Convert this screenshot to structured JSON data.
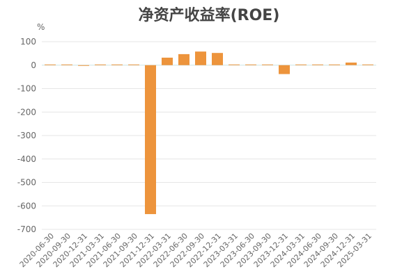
{
  "chart_data": {
    "type": "bar",
    "title": "净资产收益率(ROE)",
    "unit": "%",
    "ylim": [
      -700,
      100
    ],
    "yticks": [
      100,
      0,
      -100,
      -200,
      -300,
      -400,
      -500,
      -600,
      -700
    ],
    "ytick_labels": [
      "100",
      "0",
      "-100",
      "-200",
      "-300",
      "-400",
      "-500",
      "-600",
      "-700"
    ],
    "grid": true,
    "colors": {
      "bar": "#ED943C",
      "zero_line": "#CCE6E6",
      "grid": "#E6E6E6"
    },
    "categories": [
      "2020-06-30",
      "2020-09-30",
      "2020-12-31",
      "2021-03-31",
      "2021-06-30",
      "2021-09-30",
      "2021-12-31",
      "2022-03-31",
      "2022-06-30",
      "2022-09-30",
      "2022-12-31",
      "2023-03-31",
      "2023-06-30",
      "2023-09-30",
      "2023-12-31",
      "2024-03-31",
      "2024-06-30",
      "2024-09-30",
      "2024-12-31",
      "2025-03-31"
    ],
    "values": [
      1,
      2,
      -3,
      0.3,
      0.5,
      1,
      -635,
      32,
      47,
      58,
      52,
      0.5,
      0.5,
      1,
      -38,
      2,
      1,
      2,
      11,
      0.3
    ]
  }
}
